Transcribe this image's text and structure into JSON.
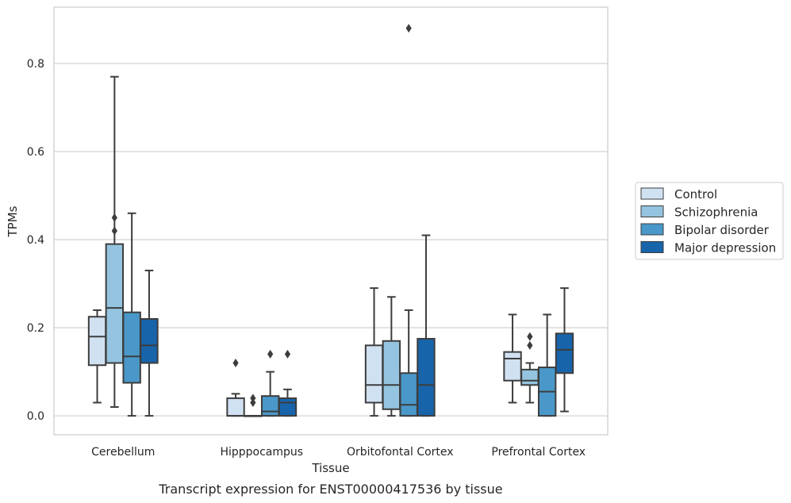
{
  "chart_data": {
    "type": "box",
    "title": "",
    "caption": "Transcript expression for ENST00000417536 by tissue",
    "xlabel": "Tissue",
    "ylabel": "TPMs",
    "categories": [
      "Cerebellum",
      "Hipppocampus",
      "Orbitofontal Cortex",
      "Prefrontal Cortex"
    ],
    "ylim": [
      -0.043,
      0.928
    ],
    "yticks": [
      0.0,
      0.2,
      0.4,
      0.6,
      0.8
    ],
    "ytick_labels": [
      "0.0",
      "0.2",
      "0.4",
      "0.6",
      "0.8"
    ],
    "grid": "horizontal",
    "legend_position": "right",
    "series": [
      {
        "name": "Control",
        "color": "#d0e1f2",
        "boxes": [
          {
            "category": "Cerebellum",
            "whisker_low": 0.03,
            "q1": 0.115,
            "median": 0.18,
            "q3": 0.225,
            "whisker_high": 0.24,
            "outliers": []
          },
          {
            "category": "Hipppocampus",
            "whisker_low": 0.0,
            "q1": 0.0,
            "median": 0.0,
            "q3": 0.04,
            "whisker_high": 0.05,
            "outliers": [
              0.12
            ]
          },
          {
            "category": "Orbitofontal Cortex",
            "whisker_low": 0.0,
            "q1": 0.03,
            "median": 0.07,
            "q3": 0.16,
            "whisker_high": 0.29,
            "outliers": []
          },
          {
            "category": "Prefrontal Cortex",
            "whisker_low": 0.03,
            "q1": 0.08,
            "median": 0.13,
            "q3": 0.145,
            "whisker_high": 0.23,
            "outliers": []
          }
        ]
      },
      {
        "name": "Schizophrenia",
        "color": "#94c4df",
        "boxes": [
          {
            "category": "Cerebellum",
            "whisker_low": 0.02,
            "q1": 0.12,
            "median": 0.245,
            "q3": 0.39,
            "whisker_high": 0.77,
            "outliers": [
              0.42,
              0.45
            ]
          },
          {
            "category": "Hipppocampus",
            "whisker_low": 0.0,
            "q1": 0.0,
            "median": 0.0,
            "q3": 0.0,
            "whisker_high": 0.0,
            "outliers": [
              0.03,
              0.04
            ]
          },
          {
            "category": "Orbitofontal Cortex",
            "whisker_low": 0.0,
            "q1": 0.015,
            "median": 0.07,
            "q3": 0.17,
            "whisker_high": 0.27,
            "outliers": []
          },
          {
            "category": "Prefrontal Cortex",
            "whisker_low": 0.03,
            "q1": 0.07,
            "median": 0.08,
            "q3": 0.105,
            "whisker_high": 0.12,
            "outliers": [
              0.16,
              0.18
            ]
          }
        ]
      },
      {
        "name": "Bipolar disorder",
        "color": "#4a98c9",
        "boxes": [
          {
            "category": "Cerebellum",
            "whisker_low": 0.0,
            "q1": 0.075,
            "median": 0.135,
            "q3": 0.235,
            "whisker_high": 0.46,
            "outliers": []
          },
          {
            "category": "Hipppocampus",
            "whisker_low": 0.0,
            "q1": 0.0,
            "median": 0.01,
            "q3": 0.045,
            "whisker_high": 0.1,
            "outliers": [
              0.14
            ]
          },
          {
            "category": "Orbitofontal Cortex",
            "whisker_low": 0.0,
            "q1": 0.0,
            "median": 0.025,
            "q3": 0.097,
            "whisker_high": 0.24,
            "outliers": [
              0.88
            ]
          },
          {
            "category": "Prefrontal Cortex",
            "whisker_low": 0.0,
            "q1": 0.0,
            "median": 0.055,
            "q3": 0.11,
            "whisker_high": 0.23,
            "outliers": []
          }
        ]
      },
      {
        "name": "Major depression",
        "color": "#1764ab",
        "boxes": [
          {
            "category": "Cerebellum",
            "whisker_low": 0.0,
            "q1": 0.12,
            "median": 0.16,
            "q3": 0.22,
            "whisker_high": 0.33,
            "outliers": []
          },
          {
            "category": "Hipppocampus",
            "whisker_low": 0.0,
            "q1": 0.0,
            "median": 0.03,
            "q3": 0.04,
            "whisker_high": 0.06,
            "outliers": [
              0.14
            ]
          },
          {
            "category": "Orbitofontal Cortex",
            "whisker_low": 0.0,
            "q1": 0.0,
            "median": 0.07,
            "q3": 0.175,
            "whisker_high": 0.41,
            "outliers": []
          },
          {
            "category": "Prefrontal Cortex",
            "whisker_low": 0.01,
            "q1": 0.097,
            "median": 0.15,
            "q3": 0.187,
            "whisker_high": 0.29,
            "outliers": []
          }
        ]
      }
    ]
  }
}
